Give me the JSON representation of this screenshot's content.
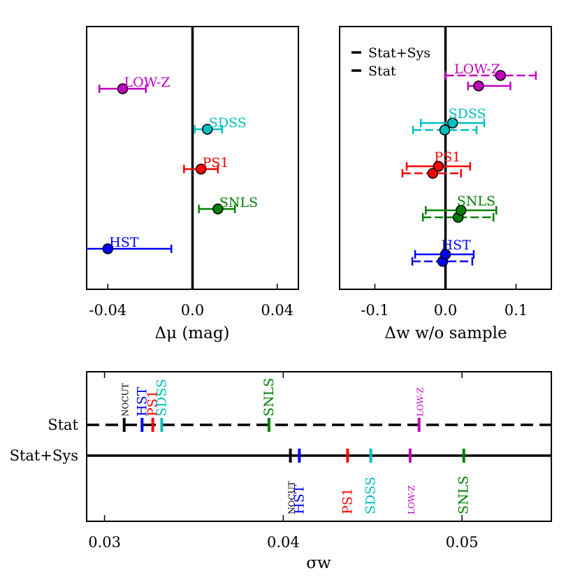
{
  "chart_data": [
    {
      "type": "scatter",
      "panel": "top-left",
      "xlabel": "Δμ (mag)",
      "xlim": [
        -0.05,
        0.05
      ],
      "xticks": [
        -0.04,
        0.0,
        0.04
      ],
      "xtick_labels": [
        "-0.04",
        "0.0",
        "0.04"
      ],
      "reference_line_x": 0.0,
      "series": [
        {
          "name": "LOW-Z",
          "color": "#bf00bf",
          "value": -0.033,
          "err_lo": 0.011,
          "err_hi": 0.011
        },
        {
          "name": "SDSS",
          "color": "#00bfbf",
          "value": 0.007,
          "err_lo": 0.006,
          "err_hi": 0.007
        },
        {
          "name": "PS1",
          "color": "#ff0000",
          "value": 0.004,
          "err_lo": 0.008,
          "err_hi": 0.008
        },
        {
          "name": "SNLS",
          "color": "#008000",
          "value": 0.012,
          "err_lo": 0.009,
          "err_hi": 0.008
        },
        {
          "name": "HST",
          "color": "#0000ff",
          "value": -0.04,
          "err_lo": 0.012,
          "err_hi": 0.03
        }
      ]
    },
    {
      "type": "scatter",
      "panel": "top-right",
      "xlabel": "Δw w/o sample",
      "xlim": [
        -0.15,
        0.15
      ],
      "xticks": [
        -0.1,
        0.0,
        0.1
      ],
      "xtick_labels": [
        "-0.1",
        "0.0",
        "0.1"
      ],
      "reference_line_x": 0.0,
      "legend": {
        "position": "top-left",
        "entries": [
          "Stat+Sys",
          "Stat"
        ]
      },
      "series": [
        {
          "name": "LOW-Z",
          "color": "#bf00bf",
          "stat": {
            "value": 0.047,
            "err_lo": 0.015,
            "err_hi": 0.045
          },
          "statsys": {
            "value": 0.078,
            "err_lo": 0.078,
            "err_hi": 0.05
          }
        },
        {
          "name": "SDSS",
          "color": "#00bfbf",
          "stat": {
            "value": 0.01,
            "err_lo": 0.045,
            "err_hi": 0.045
          },
          "statsys": {
            "value": -0.001,
            "err_lo": 0.045,
            "err_hi": 0.045
          }
        },
        {
          "name": "PS1",
          "color": "#ff0000",
          "stat": {
            "value": -0.01,
            "err_lo": 0.045,
            "err_hi": 0.045
          },
          "statsys": {
            "value": -0.018,
            "err_lo": 0.043,
            "err_hi": 0.04
          }
        },
        {
          "name": "SNLS",
          "color": "#008000",
          "stat": {
            "value": 0.022,
            "err_lo": 0.05,
            "err_hi": 0.05
          },
          "statsys": {
            "value": 0.018,
            "err_lo": 0.05,
            "err_hi": 0.05
          }
        },
        {
          "name": "HST",
          "color": "#0000ff",
          "stat": {
            "value": 0.0,
            "err_lo": 0.043,
            "err_hi": 0.04
          },
          "statsys": {
            "value": -0.004,
            "err_lo": 0.043,
            "err_hi": 0.042
          }
        }
      ]
    },
    {
      "type": "line",
      "panel": "bottom",
      "xlabel": "σw",
      "xlim": [
        0.029,
        0.055
      ],
      "xticks": [
        0.03,
        0.04,
        0.05
      ],
      "xtick_labels": [
        "0.03",
        "0.04",
        "0.05"
      ],
      "rows": [
        {
          "name": "Stat",
          "style": "dashed",
          "markers": [
            {
              "label": "NOCUT",
              "value": 0.0311,
              "color": "#000000"
            },
            {
              "label": "HST",
              "value": 0.0321,
              "color": "#0000ff"
            },
            {
              "label": "PS1",
              "value": 0.0327,
              "color": "#ff0000"
            },
            {
              "label": "SDSS",
              "value": 0.0332,
              "color": "#00bfbf"
            },
            {
              "label": "SNLS",
              "value": 0.0392,
              "color": "#008000"
            },
            {
              "label": "LOW-Z",
              "value": 0.0476,
              "color": "#bf00bf"
            }
          ]
        },
        {
          "name": "Stat+Sys",
          "style": "solid",
          "markers": [
            {
              "label": "NOCUT",
              "value": 0.0404,
              "color": "#000000"
            },
            {
              "label": "HST",
              "value": 0.0409,
              "color": "#0000ff"
            },
            {
              "label": "PS1",
              "value": 0.0436,
              "color": "#ff0000"
            },
            {
              "label": "SDSS",
              "value": 0.0449,
              "color": "#00bfbf"
            },
            {
              "label": "LOW-Z",
              "value": 0.0471,
              "color": "#bf00bf"
            },
            {
              "label": "SNLS",
              "value": 0.0501,
              "color": "#008000"
            }
          ]
        }
      ]
    }
  ]
}
